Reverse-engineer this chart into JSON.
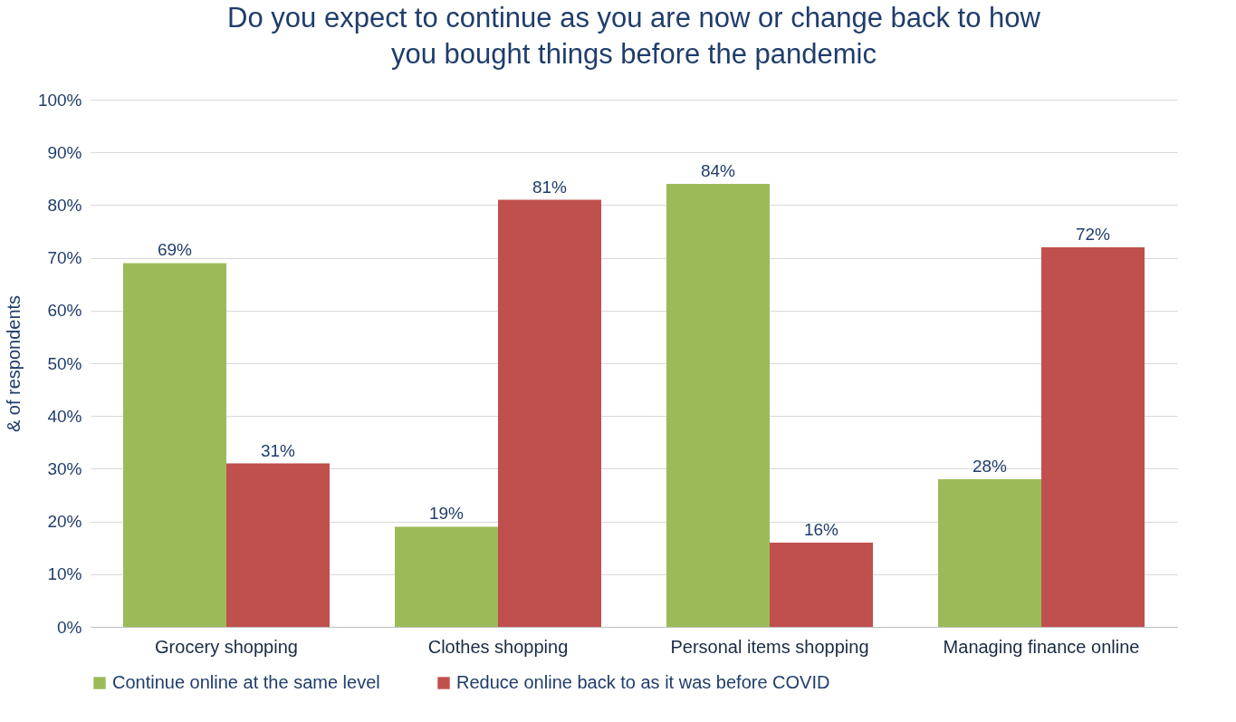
{
  "chart_data": {
    "type": "bar",
    "title": "Do you expect to continue as you are now or change back to how you bought things before the pandemic",
    "ylabel": "& of respondents",
    "categories": [
      "Grocery shopping",
      "Clothes shopping",
      "Personal items shopping",
      "Managing finance online"
    ],
    "series": [
      {
        "name": "Continue online at the same level",
        "color": "#9bbb59",
        "values": [
          69,
          19,
          84,
          28
        ],
        "value_labels": [
          "69%",
          "19%",
          "84%",
          "28%"
        ]
      },
      {
        "name": "Reduce online back to as it was before COVID",
        "color": "#c0504d",
        "values": [
          31,
          81,
          16,
          72
        ],
        "value_labels": [
          "31%",
          "81%",
          "16%",
          "72%"
        ]
      }
    ],
    "ylim": [
      0,
      100
    ],
    "yticks": [
      {
        "value": 0,
        "label": "0%"
      },
      {
        "value": 10,
        "label": "10%"
      },
      {
        "value": 20,
        "label": "20%"
      },
      {
        "value": 30,
        "label": "30%"
      },
      {
        "value": 40,
        "label": "40%"
      },
      {
        "value": 50,
        "label": "50%"
      },
      {
        "value": 60,
        "label": "60%"
      },
      {
        "value": 70,
        "label": "70%"
      },
      {
        "value": 80,
        "label": "80%"
      },
      {
        "value": 90,
        "label": "90%"
      },
      {
        "value": 100,
        "label": "100%"
      }
    ],
    "grid": "y",
    "legend": "bottom"
  }
}
